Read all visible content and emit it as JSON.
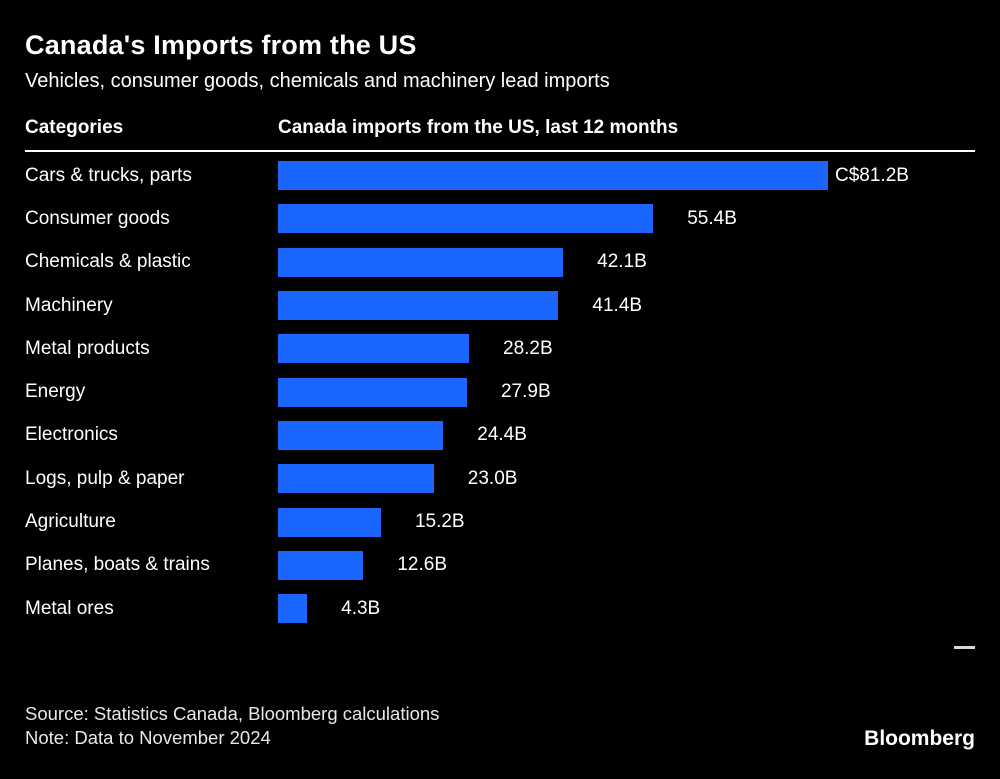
{
  "header": {
    "title": "Canada's Imports from the US",
    "subtitle": "Vehicles, consumer goods, chemicals and machinery lead imports"
  },
  "columns": {
    "categories_header": "Categories",
    "values_header": "Canada imports from the US, last 12 months"
  },
  "chart_data": {
    "type": "bar",
    "orientation": "horizontal",
    "title": "Canada's Imports from the US",
    "subtitle": "Vehicles, consumer goods, chemicals and machinery lead imports",
    "units": "C$ billions",
    "categories": [
      "Cars & trucks, parts",
      "Consumer goods",
      "Chemicals & plastic",
      "Machinery",
      "Metal products",
      "Energy",
      "Electronics",
      "Logs, pulp & paper",
      "Agriculture",
      "Planes, boats & trains",
      "Metal ores"
    ],
    "values": [
      81.2,
      55.4,
      42.1,
      41.4,
      28.2,
      27.9,
      24.4,
      23.0,
      15.2,
      12.6,
      4.3
    ],
    "value_labels": [
      "C$81.2B",
      "55.4B",
      "42.1B",
      "41.4B",
      "28.2B",
      "27.9B",
      "24.4B",
      "23.0B",
      "15.2B",
      "12.6B",
      "4.3B"
    ],
    "bar_color": "#1a66ff",
    "background_color": "#000000",
    "xlim": [
      0,
      85
    ],
    "grid": false,
    "legend": "none"
  },
  "footer": {
    "source": "Source: Statistics Canada, Bloomberg calculations",
    "note": "Note: Data to November 2024",
    "brand": "Bloomberg"
  }
}
